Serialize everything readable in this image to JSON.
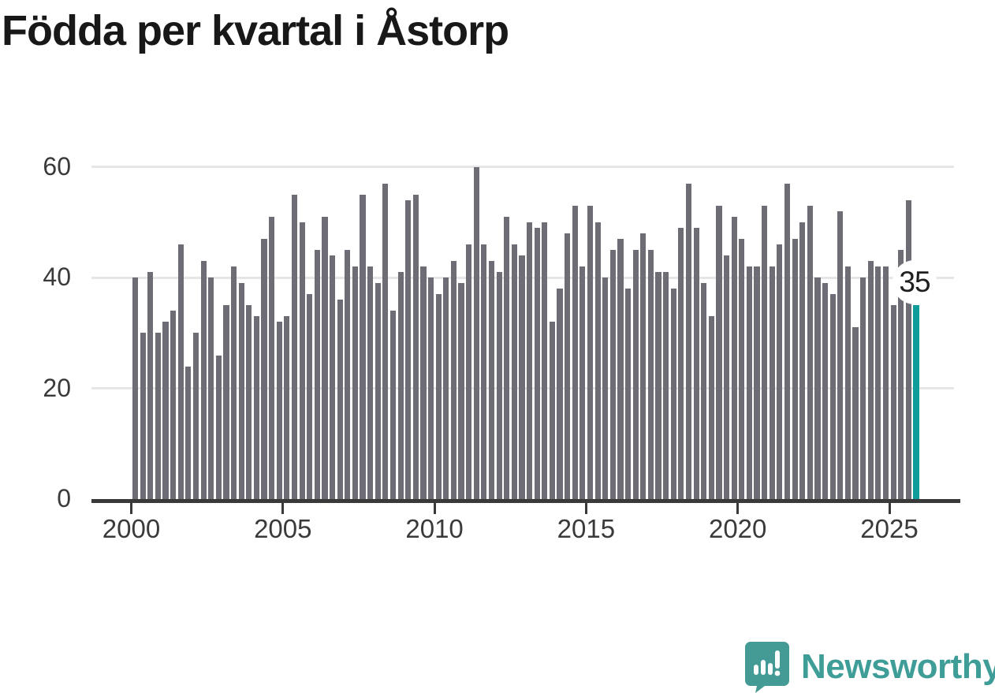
{
  "page": {
    "title": "Födda per kvartal i Åstorp"
  },
  "chart_data": {
    "type": "bar",
    "title": "Födda per kvartal i Åstorp",
    "x_tick_labels": [
      "2000",
      "2005",
      "2010",
      "2015",
      "2020",
      "2025"
    ],
    "y_tick_values": [
      0,
      20,
      40,
      60
    ],
    "ylim": [
      0,
      62
    ],
    "grid": "horizontal",
    "legend": "none",
    "bar_color": "#6e6c74",
    "highlight_color": "#109d99",
    "period_start": "2000 Q1",
    "period_end": "2025 Q4",
    "frequency": "quarterly",
    "values": [
      40,
      30,
      41,
      30,
      32,
      34,
      46,
      24,
      30,
      43,
      40,
      26,
      35,
      42,
      39,
      35,
      33,
      47,
      51,
      32,
      33,
      55,
      50,
      37,
      45,
      51,
      44,
      36,
      45,
      42,
      55,
      42,
      39,
      57,
      34,
      41,
      54,
      55,
      42,
      40,
      37,
      40,
      43,
      39,
      46,
      60,
      46,
      43,
      41,
      51,
      46,
      44,
      50,
      49,
      50,
      32,
      38,
      48,
      53,
      42,
      53,
      50,
      40,
      45,
      47,
      38,
      45,
      48,
      45,
      41,
      41,
      38,
      49,
      57,
      49,
      39,
      33,
      53,
      44,
      51,
      47,
      42,
      42,
      53,
      42,
      46,
      57,
      47,
      50,
      53,
      40,
      39,
      37,
      52,
      42,
      31,
      40,
      43,
      42,
      42,
      35,
      45,
      54,
      35
    ],
    "highlight_index": 103,
    "annotation": {
      "text": "35"
    }
  },
  "footer": {
    "brand": "Newsworthy"
  }
}
